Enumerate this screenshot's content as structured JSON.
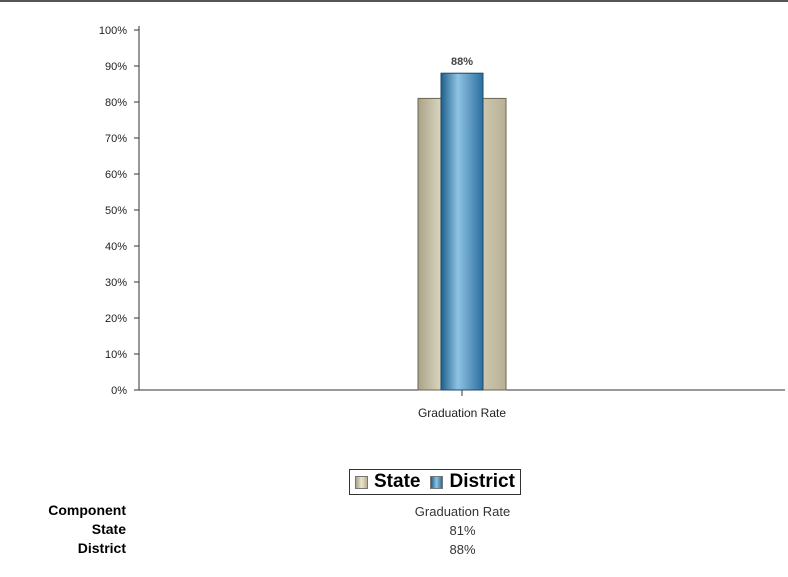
{
  "chart_data": {
    "type": "bar",
    "title": "",
    "xlabel": "",
    "ylabel": "",
    "categories": [
      "Graduation Rate"
    ],
    "series": [
      {
        "name": "State",
        "values": [
          81
        ],
        "color": "#c9c2a8"
      },
      {
        "name": "District",
        "values": [
          88
        ],
        "color": "#3f86b3"
      }
    ],
    "data_labels": [
      {
        "series": "District",
        "category": "Graduation Rate",
        "text": "88%"
      }
    ],
    "ylim": [
      0,
      100
    ],
    "y_ticks": [
      "0%",
      "10%",
      "20%",
      "30%",
      "40%",
      "50%",
      "60%",
      "70%",
      "80%",
      "90%",
      "100%"
    ],
    "grid": false,
    "legend_position": "bottom"
  },
  "legend": {
    "items": [
      {
        "label": "State",
        "color": "#c9c2a8"
      },
      {
        "label": "District",
        "color": "#3f86b3"
      }
    ]
  },
  "data_table": {
    "header": {
      "label": "Component",
      "value": "Graduation Rate"
    },
    "rows": [
      {
        "label": "State",
        "value": "81%"
      },
      {
        "label": "District",
        "value": "88%"
      }
    ]
  }
}
